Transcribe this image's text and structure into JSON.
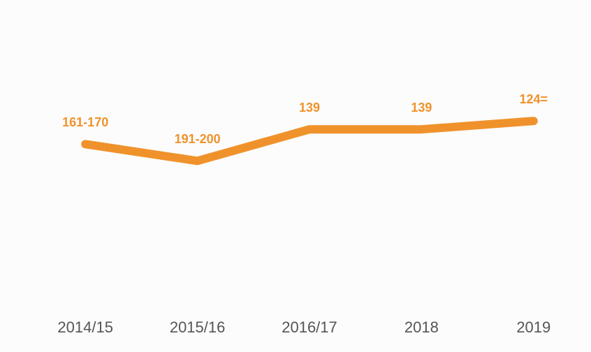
{
  "chart_data": {
    "type": "line",
    "categories": [
      "2014/15",
      "2015/16",
      "2016/17",
      "2018",
      "2019"
    ],
    "values": [
      165.5,
      195.5,
      139,
      139,
      124
    ],
    "value_labels": [
      "161-170",
      "191-200",
      "139",
      "139",
      "124="
    ],
    "color": "#f0922b",
    "ylim": [
      400,
      0
    ]
  }
}
